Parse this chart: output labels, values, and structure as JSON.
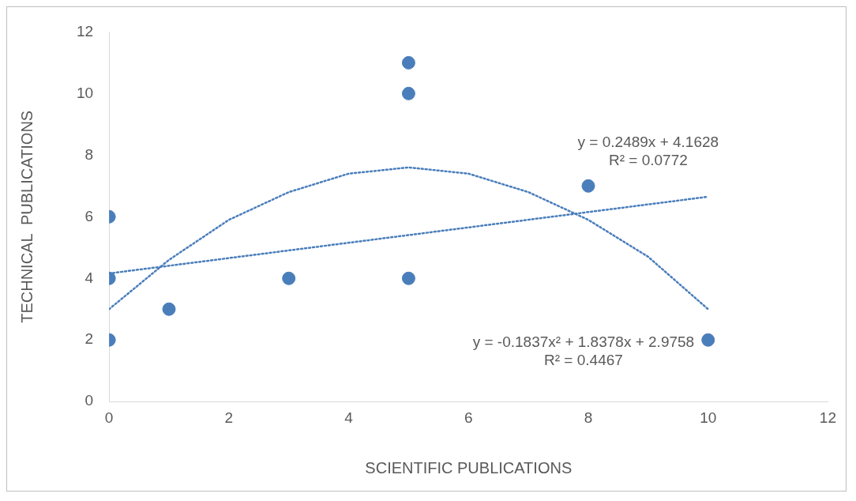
{
  "chart_data": {
    "type": "scatter",
    "xlabel": "SCIENTIFIC PUBLICATIONS",
    "ylabel": "TECHNICAL  PUBLICATIONS",
    "xlim": [
      0,
      12
    ],
    "xticks": [
      0,
      2,
      4,
      6,
      8,
      10,
      12
    ],
    "ylim": [
      0,
      12
    ],
    "yticks": [
      0,
      2,
      4,
      6,
      8,
      10,
      12
    ],
    "grid": false,
    "legend": false,
    "marker": "circle",
    "series": [
      {
        "type": "scatter",
        "color": "#4a7ebb",
        "x": [
          0,
          0,
          0,
          1,
          3,
          5,
          5,
          5,
          8,
          10
        ],
        "values": [
          6,
          4,
          2,
          3,
          4,
          11,
          10,
          4,
          7,
          2
        ]
      },
      {
        "type": "line",
        "color": "#4a7ebb",
        "line_style": "dotted",
        "marker": "none",
        "x": [
          0,
          10
        ],
        "values": [
          4.16,
          6.65
        ]
      },
      {
        "type": "line",
        "color": "#4a7ebb",
        "line_style": "dotted",
        "marker": "none",
        "x": [
          0,
          1,
          2,
          3,
          4,
          5,
          6,
          7,
          8,
          9,
          10
        ],
        "values": [
          3.0,
          4.6,
          5.9,
          6.8,
          7.4,
          7.6,
          7.4,
          6.8,
          5.9,
          4.7,
          3.0
        ]
      }
    ],
    "annotations": [
      "y = 0.2489x + 4.1628",
      "R² = 0.0772",
      "y = -0.1837x² + 1.8378x + 2.9758",
      "R² = 0.4467"
    ]
  }
}
